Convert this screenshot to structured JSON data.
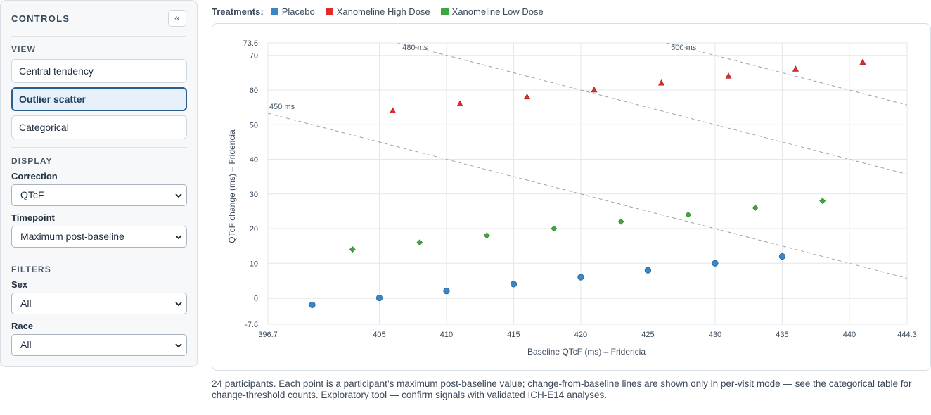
{
  "sidebar": {
    "title": "CONTROLS",
    "collapse_icon": "«",
    "view": {
      "title": "VIEW",
      "options": [
        "Central tendency",
        "Outlier scatter",
        "Categorical"
      ],
      "active": "Outlier scatter"
    },
    "display": {
      "title": "DISPLAY",
      "correction": {
        "label": "Correction",
        "value": "QTcF"
      },
      "timepoint": {
        "label": "Timepoint",
        "value": "Maximum post-baseline"
      }
    },
    "filters": {
      "title": "FILTERS",
      "sex": {
        "label": "Sex",
        "value": "All"
      },
      "race": {
        "label": "Race",
        "value": "All"
      }
    }
  },
  "legend": {
    "label": "Treatments:",
    "items": [
      {
        "name": "Placebo",
        "color": "#3a87c8"
      },
      {
        "name": "Xanomeline High Dose",
        "color": "#e02b2b"
      },
      {
        "name": "Xanomeline Low Dose",
        "color": "#3fa53f"
      }
    ]
  },
  "chart_data": {
    "type": "scatter",
    "xlabel": "Baseline QTcF (ms) – Fridericia",
    "ylabel": "QTcF change (ms) – Fridericia",
    "xlim": [
      396.7,
      444.3
    ],
    "ylim": [
      -7.6,
      73.6
    ],
    "x_ticks": [
      "396.7",
      "405",
      "410",
      "415",
      "420",
      "425",
      "430",
      "435",
      "440",
      "444.3"
    ],
    "y_ticks": [
      "73.6",
      "70",
      "60",
      "50",
      "40",
      "30",
      "20",
      "10",
      "0",
      "-7.6"
    ],
    "grid": true,
    "zero_line": true,
    "reference_lines": [
      {
        "label": "450 ms",
        "total": 450
      },
      {
        "label": "480 ms",
        "total": 480
      },
      {
        "label": "500 ms",
        "total": 500
      }
    ],
    "series": [
      {
        "name": "Placebo",
        "marker": "circle",
        "color": "#3a87c8",
        "points": [
          [
            400,
            -2
          ],
          [
            405,
            0
          ],
          [
            410,
            2
          ],
          [
            415,
            4
          ],
          [
            420,
            6
          ],
          [
            425,
            8
          ],
          [
            430,
            10
          ],
          [
            435,
            12
          ]
        ]
      },
      {
        "name": "Xanomeline High Dose",
        "marker": "triangle",
        "color": "#e02b2b",
        "points": [
          [
            406,
            54
          ],
          [
            411,
            56
          ],
          [
            416,
            58
          ],
          [
            421,
            60
          ],
          [
            426,
            62
          ],
          [
            431,
            64
          ],
          [
            436,
            66
          ],
          [
            441,
            68
          ]
        ]
      },
      {
        "name": "Xanomeline Low Dose",
        "marker": "diamond",
        "color": "#3fa53f",
        "points": [
          [
            403,
            14
          ],
          [
            408,
            16
          ],
          [
            413,
            18
          ],
          [
            418,
            20
          ],
          [
            423,
            22
          ],
          [
            428,
            24
          ],
          [
            433,
            26
          ],
          [
            438,
            28
          ]
        ]
      }
    ]
  },
  "footnote": "24 participants. Each point is a participant’s maximum post-baseline value; change-from-baseline lines are shown only in per-visit mode — see the categorical table for change-threshold counts. Exploratory tool — confirm signals with validated ICH-E14 analyses."
}
